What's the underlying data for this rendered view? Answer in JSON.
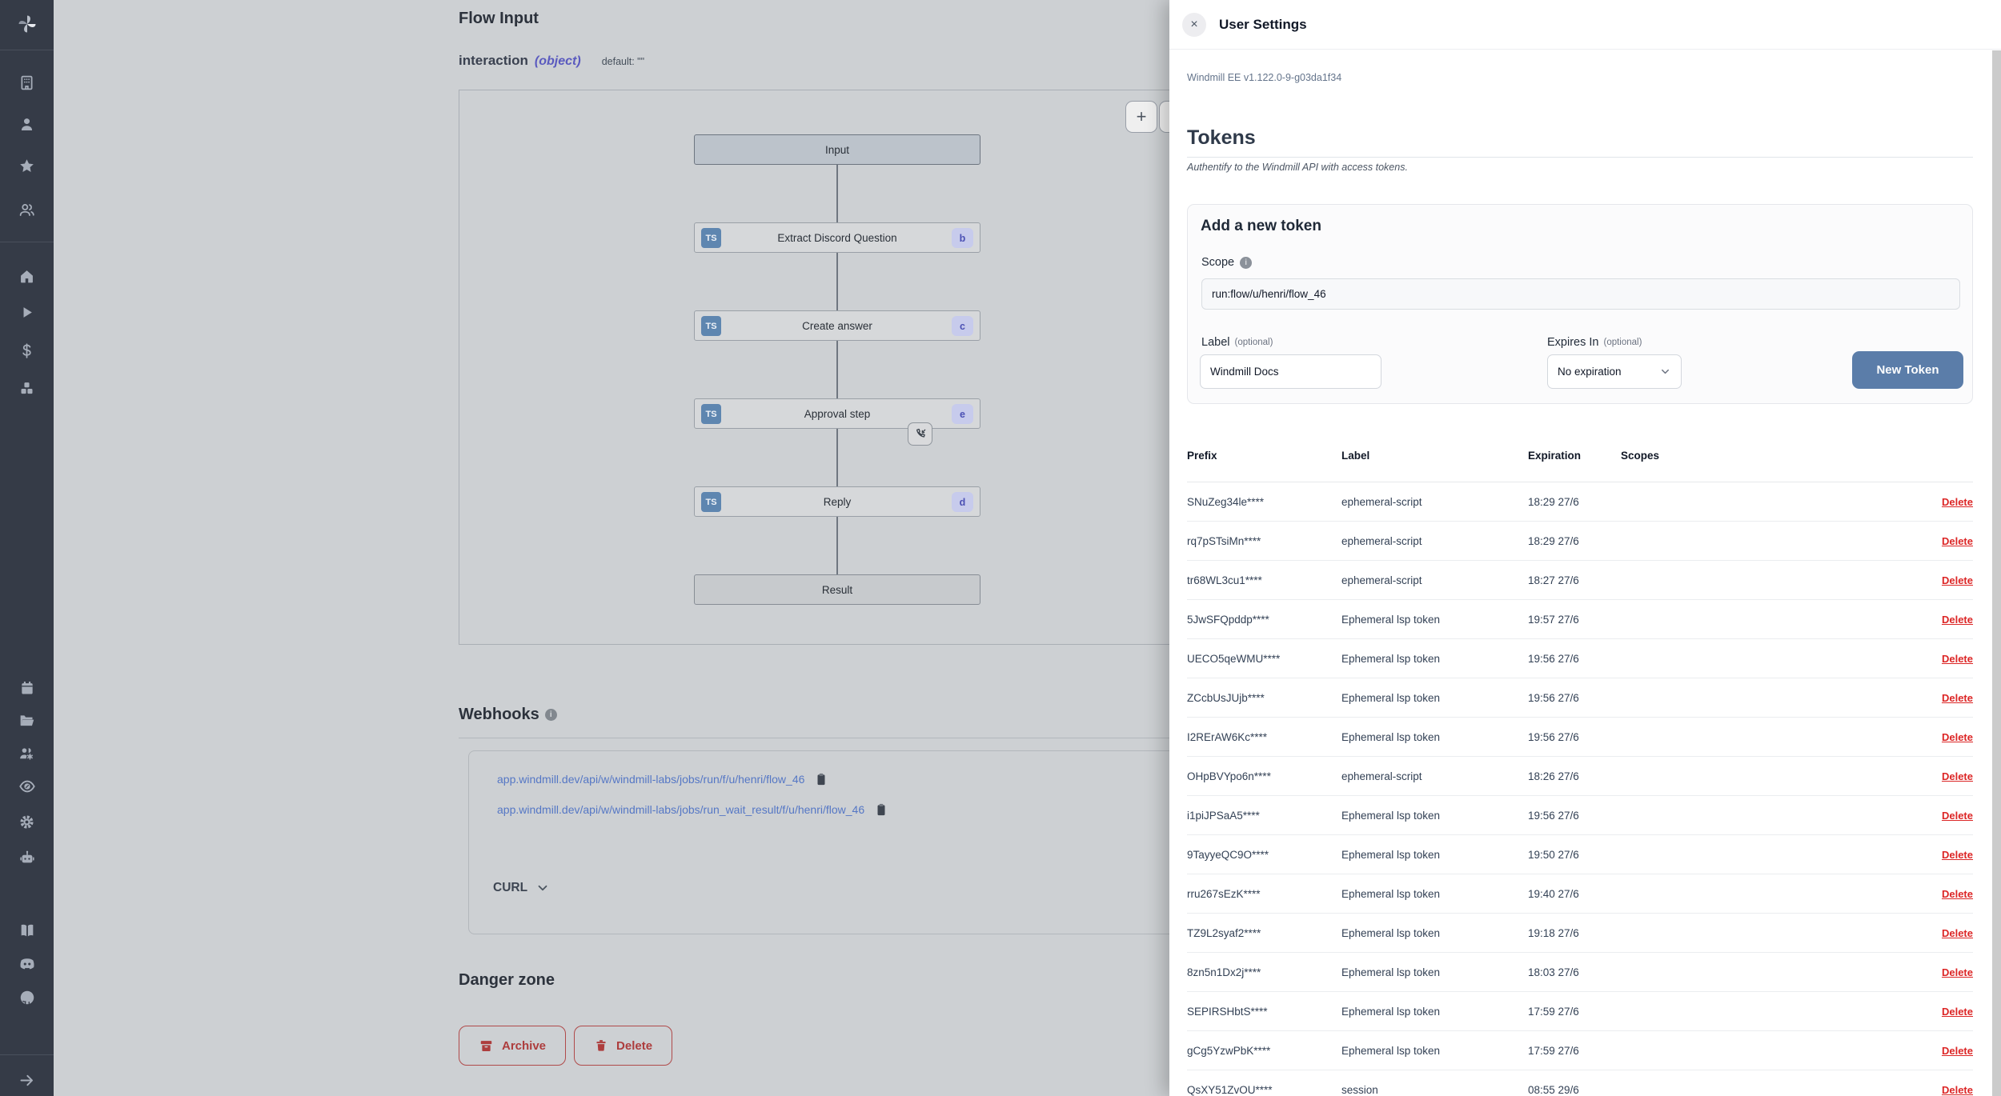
{
  "sidebar": {
    "icons": [
      "windmill-logo",
      "building",
      "user",
      "star",
      "users",
      "home",
      "play",
      "dollar",
      "boxes",
      "calendar",
      "folder-open",
      "workers",
      "eye",
      "gear",
      "robot",
      "book",
      "discord",
      "github",
      "expand-arrow"
    ]
  },
  "flow": {
    "title": "Flow Input",
    "schema": {
      "name": "interaction",
      "type": "(object)",
      "default_label": "default: \"\""
    },
    "zoom_in": "+",
    "zoom_out": "−",
    "nodes": [
      {
        "label": "Input",
        "kind": "input"
      },
      {
        "label": "Extract Discord Question",
        "kind": "step",
        "lang": "TS",
        "badge": "b"
      },
      {
        "label": "Create answer",
        "kind": "step",
        "lang": "TS",
        "badge": "c"
      },
      {
        "label": "Approval step",
        "kind": "step",
        "lang": "TS",
        "badge": "e",
        "suspend_icon": true
      },
      {
        "label": "Reply",
        "kind": "step",
        "lang": "TS",
        "badge": "d"
      },
      {
        "label": "Result",
        "kind": "result"
      }
    ]
  },
  "webhooks": {
    "title": "Webhooks",
    "urls": [
      "app.windmill.dev/api/w/windmill-labs/jobs/run/f/u/henri/flow_46",
      "app.windmill.dev/api/w/windmill-labs/jobs/run_wait_result/f/u/henri/flow_46"
    ],
    "curl_label": "CURL"
  },
  "danger": {
    "title": "Danger zone",
    "archive_label": "Archive",
    "delete_label": "Delete"
  },
  "panel": {
    "title": "User Settings",
    "close_label": "×",
    "version": "Windmill EE v1.122.0-9-g03da1f34",
    "tokens": {
      "heading": "Tokens",
      "subtitle": "Authentify to the Windmill API with access tokens.",
      "add": {
        "heading": "Add a new token",
        "scope_label": "Scope",
        "scope_value": "run:flow/u/henri/flow_46",
        "label_label": "Label",
        "optional_label": "(optional)",
        "label_value": "Windmill Docs",
        "expires_label": "Expires In",
        "expires_value": "No expiration",
        "button_label": "New Token"
      },
      "table": {
        "headers": [
          "Prefix",
          "Label",
          "Expiration",
          "Scopes"
        ],
        "delete_label": "Delete",
        "rows": [
          {
            "prefix": "SNuZeg34le****",
            "label": "ephemeral-script",
            "expiration": "18:29 27/6"
          },
          {
            "prefix": "rq7pSTsiMn****",
            "label": "ephemeral-script",
            "expiration": "18:29 27/6"
          },
          {
            "prefix": "tr68WL3cu1****",
            "label": "ephemeral-script",
            "expiration": "18:27 27/6"
          },
          {
            "prefix": "5JwSFQpddp****",
            "label": "Ephemeral lsp token",
            "expiration": "19:57 27/6"
          },
          {
            "prefix": "UECO5qeWMU****",
            "label": "Ephemeral lsp token",
            "expiration": "19:56 27/6"
          },
          {
            "prefix": "ZCcbUsJUjb****",
            "label": "Ephemeral lsp token",
            "expiration": "19:56 27/6"
          },
          {
            "prefix": "I2RErAW6Kc****",
            "label": "Ephemeral lsp token",
            "expiration": "19:56 27/6"
          },
          {
            "prefix": "OHpBVYpo6n****",
            "label": "ephemeral-script",
            "expiration": "18:26 27/6"
          },
          {
            "prefix": "i1piJPSaA5****",
            "label": "Ephemeral lsp token",
            "expiration": "19:56 27/6"
          },
          {
            "prefix": "9TayyeQC9O****",
            "label": "Ephemeral lsp token",
            "expiration": "19:50 27/6"
          },
          {
            "prefix": "rru267sEzK****",
            "label": "Ephemeral lsp token",
            "expiration": "19:40 27/6"
          },
          {
            "prefix": "TZ9L2syaf2****",
            "label": "Ephemeral lsp token",
            "expiration": "19:18 27/6"
          },
          {
            "prefix": "8zn5n1Dx2j****",
            "label": "Ephemeral lsp token",
            "expiration": "18:03 27/6"
          },
          {
            "prefix": "SEPIRSHbtS****",
            "label": "Ephemeral lsp token",
            "expiration": "17:59 27/6"
          },
          {
            "prefix": "gCg5YzwPbK****",
            "label": "Ephemeral lsp token",
            "expiration": "17:59 27/6"
          },
          {
            "prefix": "QsXY51ZvOU****",
            "label": "session",
            "expiration": "08:55 29/6"
          }
        ]
      }
    }
  },
  "colors": {
    "accent_button": "#5b7da9",
    "delete_red": "#dc2626",
    "link_blue": "#5577c5",
    "danger_red": "#ad3d3d",
    "ts_badge_blue": "#5e86b0"
  }
}
